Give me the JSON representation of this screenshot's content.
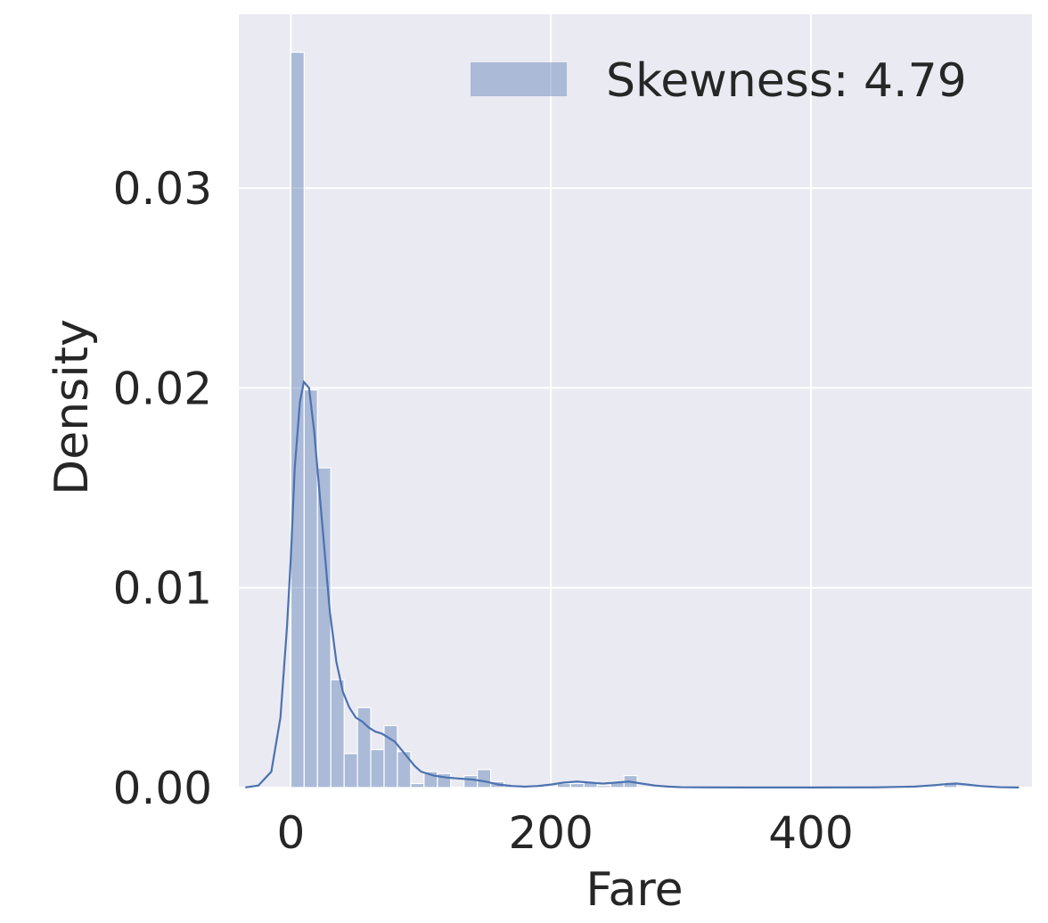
{
  "chart_data": {
    "type": "bar",
    "subtype": "histogram-with-kde",
    "xlabel": "Fare",
    "ylabel": "Density",
    "xlim": [
      -40,
      570
    ],
    "ylim": [
      0,
      0.0387
    ],
    "x_ticks": [
      0,
      200,
      400
    ],
    "x_tick_labels": [
      "0",
      "200",
      "400"
    ],
    "y_ticks": [
      0.0,
      0.01,
      0.02,
      0.03
    ],
    "y_tick_labels": [
      "0.00",
      "0.01",
      "0.02",
      "0.03"
    ],
    "grid": true,
    "legend": {
      "placement": "top-right",
      "entries": [
        "Skewness: 4.79"
      ]
    },
    "colors": {
      "background": "#eaeaf2",
      "grid": "#ffffff",
      "bar": "#4c72b0",
      "kde": "#4c72b0",
      "text": "#262626"
    },
    "histogram": {
      "bin_edges": [
        0,
        10.25,
        20.49,
        30.74,
        40.99,
        51.23,
        61.48,
        71.72,
        81.97,
        92.22,
        102.46,
        112.71,
        122.96,
        133.2,
        143.45,
        153.7,
        163.94,
        174.19,
        184.44,
        194.68,
        204.93,
        215.18,
        225.42,
        235.67,
        245.92,
        256.16,
        266.41,
        276.66,
        286.9,
        297.15,
        307.4,
        317.64,
        327.89,
        338.14,
        348.38,
        358.63,
        368.88,
        379.12,
        389.37,
        399.62,
        409.86,
        420.11,
        430.36,
        440.6,
        450.85,
        461.1,
        471.34,
        481.59,
        491.84,
        502.08,
        512.33
      ],
      "values": [
        0.0368,
        0.0199,
        0.016,
        0.0054,
        0.0017,
        0.004,
        0.0019,
        0.0031,
        0.0018,
        0.0002,
        0.0008,
        0.0007,
        0.0,
        0.0006,
        0.0009,
        0.0003,
        0.0001,
        0.0001,
        0.0001,
        0.0,
        0.0002,
        0.0002,
        0.0003,
        0.0001,
        0.0003,
        0.0006,
        0,
        0,
        0,
        0,
        0,
        0,
        0,
        0,
        0,
        0,
        0,
        0,
        0,
        0,
        0,
        0,
        0,
        0,
        0,
        0,
        0,
        0,
        0,
        0.0002
      ]
    },
    "series": [
      {
        "name": "kde",
        "x": [
          -35,
          -25,
          -15,
          -8,
          -3,
          0,
          3,
          7,
          10,
          14,
          18,
          22,
          26,
          30,
          35,
          40,
          45,
          50,
          55,
          60,
          65,
          70,
          75,
          80,
          85,
          90,
          95,
          100,
          110,
          120,
          130,
          140,
          150,
          160,
          170,
          180,
          190,
          200,
          210,
          220,
          230,
          240,
          250,
          260,
          270,
          280,
          290,
          300,
          320,
          350,
          400,
          450,
          480,
          495,
          505,
          512,
          520,
          530,
          545,
          560
        ],
        "y": [
          1e-05,
          0.0001,
          0.0008,
          0.0035,
          0.008,
          0.0115,
          0.016,
          0.0193,
          0.0203,
          0.02,
          0.0178,
          0.0148,
          0.0118,
          0.0088,
          0.0063,
          0.0048,
          0.004,
          0.0035,
          0.0033,
          0.003,
          0.0028,
          0.0027,
          0.0025,
          0.0023,
          0.0019,
          0.0015,
          0.0011,
          0.0008,
          0.0006,
          0.0005,
          0.00045,
          0.0004,
          0.0003,
          0.00015,
          8e-05,
          5e-05,
          8e-05,
          0.00015,
          0.00025,
          0.0003,
          0.00025,
          0.0002,
          0.00025,
          0.0003,
          0.0002,
          0.0001,
          5e-05,
          2e-05,
          1e-05,
          5e-06,
          5e-06,
          1e-05,
          5e-05,
          0.00012,
          0.00018,
          0.0002,
          0.00015,
          8e-05,
          2e-05,
          5e-06
        ]
      }
    ]
  }
}
